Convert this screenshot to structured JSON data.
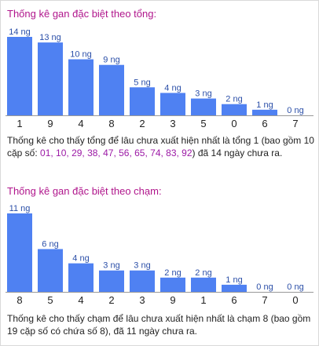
{
  "chart_data": [
    {
      "type": "bar",
      "title": "Thống kê gan đặc biệt theo tổng:",
      "categories": [
        "1",
        "9",
        "4",
        "8",
        "2",
        "3",
        "5",
        "0",
        "6",
        "7"
      ],
      "values": [
        14,
        13,
        10,
        9,
        5,
        4,
        3,
        2,
        1,
        0
      ],
      "value_labels": [
        "14 ng",
        "13 ng",
        "10 ng",
        "9 ng",
        "5 ng",
        "4 ng",
        "3 ng",
        "2 ng",
        "1 ng",
        "0 ng"
      ],
      "ylim": [
        0,
        14
      ],
      "bar_color": "#4f81f2"
    },
    {
      "type": "bar",
      "title": "Thống kê gan đặc biệt theo chạm:",
      "categories": [
        "8",
        "5",
        "4",
        "2",
        "3",
        "9",
        "1",
        "6",
        "7",
        "0"
      ],
      "values": [
        11,
        6,
        4,
        3,
        3,
        2,
        2,
        1,
        0,
        0
      ],
      "value_labels": [
        "11 ng",
        "6 ng",
        "4 ng",
        "3 ng",
        "3 ng",
        "2 ng",
        "2 ng",
        "1 ng",
        "0 ng",
        "0 ng"
      ],
      "ylim": [
        0,
        11
      ],
      "bar_color": "#4f81f2"
    }
  ],
  "desc1": {
    "part1": "Thống kê cho thấy tổng để lâu chưa xuất hiện nhất là tổng 1 (bao gồm 10 cặp số: ",
    "highlight": "01, 10, 29, 38, 47, 56, 65, 74, 83, 92",
    "part2": ") đã 14 ngày chưa ra."
  },
  "desc2": {
    "text": "Thống kê cho thấy chạm để lâu chưa xuất hiện nhất là chạm 8 (bao gồm 19 cặp số có chứa số 8), đã 11 ngày chưa ra."
  },
  "colors": {
    "title": "#b0168c",
    "highlight": "#9c1aa6",
    "value_label": "#2b4fa8"
  }
}
